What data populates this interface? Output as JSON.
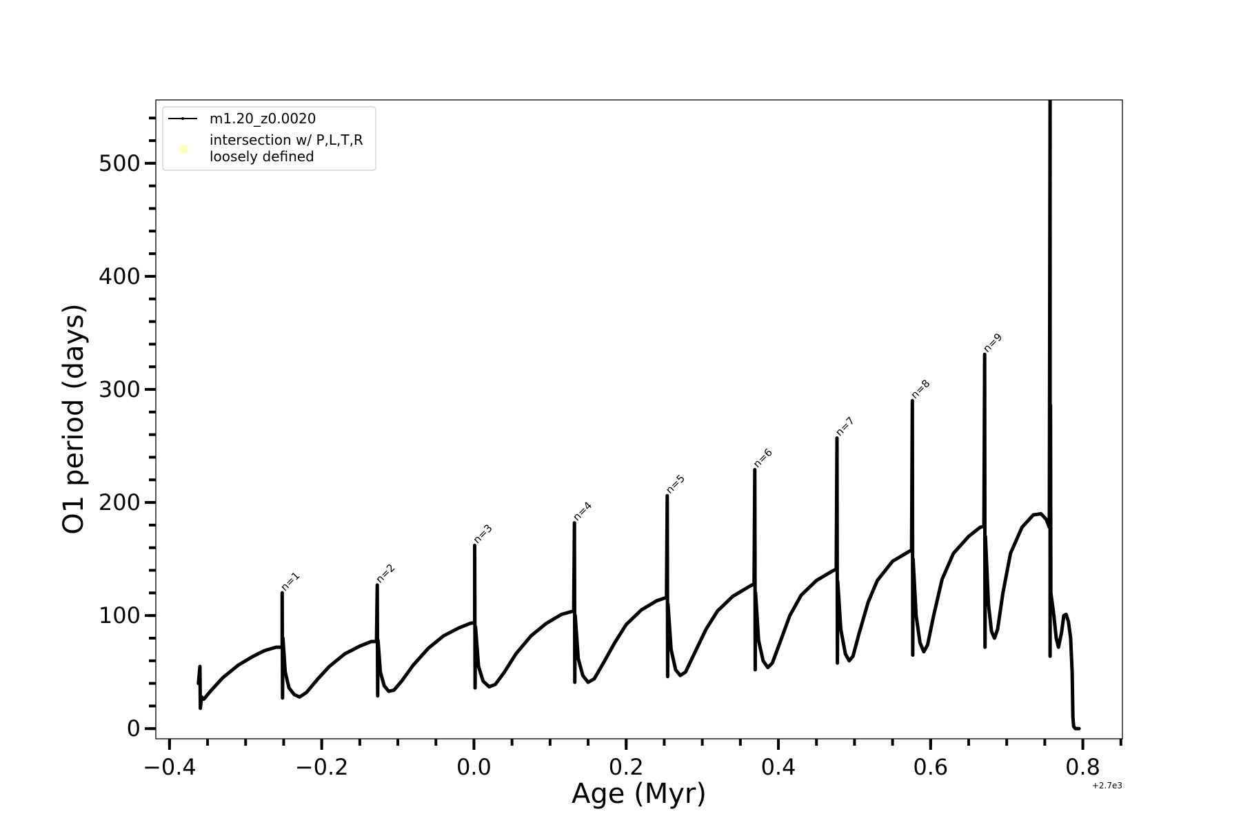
{
  "chart_data": {
    "type": "line",
    "title": "",
    "xlabel": "Age (Myr)",
    "ylabel": "O1 period (days)",
    "x_offset_text": "+2.7e3",
    "xlim": [
      -0.418,
      0.852
    ],
    "ylim": [
      -9,
      556
    ],
    "xticks": [
      -0.4,
      -0.2,
      0.0,
      0.2,
      0.4,
      0.6,
      0.8
    ],
    "xtick_labels": [
      "−0.4",
      "−0.2",
      "0.0",
      "0.2",
      "0.4",
      "0.6",
      "0.8"
    ],
    "x_minor_step": 0.05,
    "yticks": [
      0,
      100,
      200,
      300,
      400,
      500
    ],
    "ytick_labels": [
      "0",
      "100",
      "200",
      "300",
      "400",
      "500"
    ],
    "y_minor_step": 20,
    "grid": false,
    "legend": {
      "placement": "upper-left",
      "entries": [
        {
          "label": "m1.20_z0.0020",
          "marker": "line-dot",
          "color": "#000000"
        },
        {
          "label_lines": [
            "intersection w/ P,L,T,R",
            "loosely defined"
          ],
          "marker": "circle",
          "color": "#ffffc0"
        }
      ]
    },
    "series": [
      {
        "name": "m1.20_z0.0020",
        "color": "#000000",
        "points": [
          [
            -0.362,
            40
          ],
          [
            -0.36,
            55
          ],
          [
            -0.3595,
            18
          ],
          [
            -0.358,
            28
          ],
          [
            -0.355,
            26
          ],
          [
            -0.345,
            34
          ],
          [
            -0.33,
            45
          ],
          [
            -0.31,
            56
          ],
          [
            -0.29,
            64
          ],
          [
            -0.275,
            69
          ],
          [
            -0.26,
            72
          ],
          [
            -0.252,
            72
          ],
          [
            -0.252,
            120
          ],
          [
            -0.2515,
            27
          ],
          [
            -0.251,
            80
          ],
          [
            -0.248,
            50
          ],
          [
            -0.243,
            36
          ],
          [
            -0.236,
            30
          ],
          [
            -0.229,
            28
          ],
          [
            -0.22,
            32
          ],
          [
            -0.205,
            44
          ],
          [
            -0.19,
            55
          ],
          [
            -0.17,
            66
          ],
          [
            -0.15,
            73
          ],
          [
            -0.135,
            77
          ],
          [
            -0.128,
            77
          ],
          [
            -0.127,
            127
          ],
          [
            -0.1265,
            29
          ],
          [
            -0.126,
            78
          ],
          [
            -0.123,
            50
          ],
          [
            -0.118,
            38
          ],
          [
            -0.112,
            33
          ],
          [
            -0.105,
            34
          ],
          [
            -0.095,
            42
          ],
          [
            -0.08,
            56
          ],
          [
            -0.06,
            71
          ],
          [
            -0.04,
            82
          ],
          [
            -0.02,
            89
          ],
          [
            -0.005,
            93
          ],
          [
            0.001,
            94
          ],
          [
            0.001,
            162
          ],
          [
            0.0015,
            36
          ],
          [
            0.002,
            90
          ],
          [
            0.006,
            55
          ],
          [
            0.012,
            42
          ],
          [
            0.02,
            37
          ],
          [
            0.028,
            39
          ],
          [
            0.04,
            50
          ],
          [
            0.055,
            66
          ],
          [
            0.075,
            82
          ],
          [
            0.095,
            93
          ],
          [
            0.115,
            101
          ],
          [
            0.131,
            104
          ],
          [
            0.132,
            182
          ],
          [
            0.1325,
            41
          ],
          [
            0.133,
            100
          ],
          [
            0.137,
            62
          ],
          [
            0.143,
            47
          ],
          [
            0.15,
            41
          ],
          [
            0.158,
            44
          ],
          [
            0.17,
            58
          ],
          [
            0.185,
            76
          ],
          [
            0.2,
            92
          ],
          [
            0.22,
            105
          ],
          [
            0.24,
            113
          ],
          [
            0.253,
            116
          ],
          [
            0.254,
            206
          ],
          [
            0.2545,
            46
          ],
          [
            0.255,
            110
          ],
          [
            0.259,
            70
          ],
          [
            0.265,
            52
          ],
          [
            0.271,
            47
          ],
          [
            0.278,
            50
          ],
          [
            0.29,
            67
          ],
          [
            0.305,
            88
          ],
          [
            0.32,
            104
          ],
          [
            0.34,
            117
          ],
          [
            0.36,
            125
          ],
          [
            0.368,
            128
          ],
          [
            0.369,
            229
          ],
          [
            0.3695,
            52
          ],
          [
            0.37,
            120
          ],
          [
            0.374,
            78
          ],
          [
            0.38,
            60
          ],
          [
            0.386,
            54
          ],
          [
            0.392,
            58
          ],
          [
            0.402,
            76
          ],
          [
            0.415,
            100
          ],
          [
            0.43,
            118
          ],
          [
            0.45,
            131
          ],
          [
            0.47,
            139
          ],
          [
            0.476,
            141
          ],
          [
            0.477,
            257
          ],
          [
            0.4775,
            58
          ],
          [
            0.478,
            130
          ],
          [
            0.482,
            88
          ],
          [
            0.488,
            66
          ],
          [
            0.493,
            60
          ],
          [
            0.498,
            64
          ],
          [
            0.506,
            84
          ],
          [
            0.518,
            112
          ],
          [
            0.53,
            131
          ],
          [
            0.55,
            148
          ],
          [
            0.57,
            156
          ],
          [
            0.575,
            158
          ],
          [
            0.576,
            290
          ],
          [
            0.5765,
            65
          ],
          [
            0.577,
            150
          ],
          [
            0.581,
            100
          ],
          [
            0.586,
            76
          ],
          [
            0.591,
            68
          ],
          [
            0.596,
            74
          ],
          [
            0.604,
            100
          ],
          [
            0.615,
            132
          ],
          [
            0.63,
            155
          ],
          [
            0.65,
            170
          ],
          [
            0.665,
            178
          ],
          [
            0.67,
            179
          ],
          [
            0.671,
            331
          ],
          [
            0.6715,
            72
          ],
          [
            0.672,
            170
          ],
          [
            0.676,
            110
          ],
          [
            0.68,
            86
          ],
          [
            0.684,
            80
          ],
          [
            0.688,
            88
          ],
          [
            0.695,
            120
          ],
          [
            0.705,
            155
          ],
          [
            0.72,
            178
          ],
          [
            0.735,
            189
          ],
          [
            0.745,
            190
          ],
          [
            0.752,
            185
          ],
          [
            0.756,
            178
          ],
          [
            0.757,
            560
          ],
          [
            0.757,
            64
          ],
          [
            0.7575,
            286
          ],
          [
            0.758,
            120
          ],
          [
            0.762,
            100
          ],
          [
            0.765,
            80
          ],
          [
            0.768,
            72
          ],
          [
            0.772,
            85
          ],
          [
            0.775,
            100
          ],
          [
            0.778,
            101
          ],
          [
            0.781,
            95
          ],
          [
            0.784,
            80
          ],
          [
            0.786,
            50
          ],
          [
            0.787,
            10
          ],
          [
            0.788,
            2
          ],
          [
            0.79,
            0
          ],
          [
            0.795,
            0
          ]
        ]
      }
    ],
    "annotations": [
      {
        "text": "n=1",
        "x": -0.252,
        "y": 120
      },
      {
        "text": "n=2",
        "x": -0.127,
        "y": 127
      },
      {
        "text": "n=3",
        "x": 0.001,
        "y": 162
      },
      {
        "text": "n=4",
        "x": 0.132,
        "y": 182
      },
      {
        "text": "n=5",
        "x": 0.254,
        "y": 206
      },
      {
        "text": "n=6",
        "x": 0.369,
        "y": 229
      },
      {
        "text": "n=7",
        "x": 0.477,
        "y": 257
      },
      {
        "text": "n=8",
        "x": 0.576,
        "y": 290
      },
      {
        "text": "n=9",
        "x": 0.671,
        "y": 331
      }
    ]
  }
}
